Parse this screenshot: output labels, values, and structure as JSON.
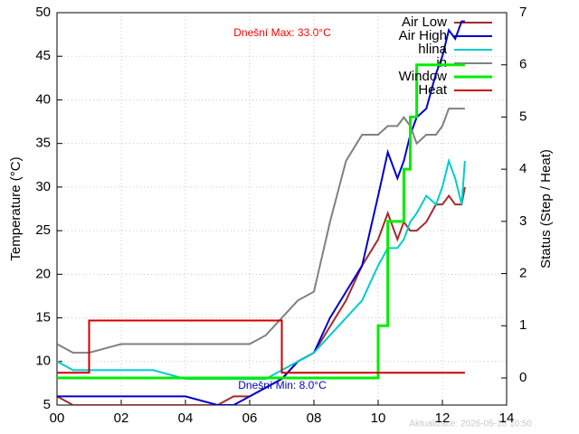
{
  "chart_data": {
    "type": "line",
    "ylabel": "Temperature (°C)",
    "y2label": "Status (Step / Heat)",
    "annotations": [
      {
        "text": "Dnešní Max: 33.0°C",
        "color": "#ff0000"
      },
      {
        "text": "Dnešní Min: 8.0°C",
        "color": "#0000cc"
      }
    ],
    "footer": "Aktualizace: 2026-05-16 10:50",
    "x": [
      0,
      0.5,
      1,
      2,
      3,
      4,
      5,
      5.5,
      6,
      6.5,
      7,
      7.5,
      8,
      8.5,
      9,
      9.5,
      10,
      10.3,
      10.6,
      10.8,
      11,
      11.2,
      11.5,
      11.8,
      12,
      12.2,
      12.4,
      12.6,
      12.7
    ],
    "xlim": [
      0,
      14
    ],
    "xticks": [
      {
        "value": 0,
        "label": "00"
      },
      {
        "value": 2,
        "label": "02"
      },
      {
        "value": 4,
        "label": "04"
      },
      {
        "value": 6,
        "label": "06"
      },
      {
        "value": 8,
        "label": "08"
      },
      {
        "value": 10,
        "label": "10"
      },
      {
        "value": 12,
        "label": "12"
      },
      {
        "value": 14,
        "label": "14"
      }
    ],
    "ylim": [
      5,
      50
    ],
    "yticks": [
      5,
      10,
      15,
      20,
      25,
      30,
      35,
      40,
      45,
      50
    ],
    "y2lim": [
      -0.52,
      7
    ],
    "y2ticks": [
      0,
      1,
      2,
      3,
      4,
      5,
      6,
      7
    ],
    "grid": true,
    "series": [
      {
        "name": "Air Low",
        "color": "#a52a2a",
        "values": [
          6,
          5,
          5,
          5,
          5,
          5,
          5,
          6,
          6,
          7,
          8,
          10,
          11,
          14,
          17,
          21,
          24,
          27,
          24,
          26,
          25,
          25,
          26,
          28,
          28,
          29,
          28,
          28,
          30
        ]
      },
      {
        "name": "Air High",
        "color": "#0000cc",
        "values": [
          6,
          6,
          6,
          6,
          6,
          6,
          5,
          5,
          6,
          7,
          8,
          10,
          11,
          15,
          18,
          21,
          29,
          34,
          31,
          33,
          36,
          38,
          39,
          43,
          45,
          48,
          47,
          49,
          49
        ]
      },
      {
        "name": "hlina",
        "color": "#00cccc",
        "values": [
          10,
          9,
          9,
          9,
          9,
          8,
          8,
          8,
          8,
          8,
          9,
          10,
          11,
          13,
          15,
          17,
          21,
          23,
          23,
          24,
          26,
          27,
          29,
          28,
          30,
          33,
          31,
          28,
          33
        ]
      },
      {
        "name": "in",
        "color": "#808080",
        "values": [
          12,
          11,
          11,
          12,
          12,
          12,
          12,
          12,
          12,
          13,
          15,
          17,
          18,
          26,
          33,
          36,
          36,
          37,
          37,
          38,
          37,
          35,
          36,
          36,
          37,
          39,
          39,
          39,
          39
        ]
      },
      {
        "name": "Window",
        "color": "#00ee00",
        "axis": "y2",
        "step": true,
        "width": 3,
        "values": [
          0,
          0,
          0,
          0,
          0,
          0,
          0,
          0,
          0,
          0,
          0,
          0,
          0,
          0,
          0,
          0,
          1,
          3,
          3,
          4,
          5,
          6,
          6,
          6,
          6,
          6,
          6,
          6,
          6
        ]
      },
      {
        "name": "Heat",
        "color": "#cc0000",
        "axis": "y2",
        "step": true,
        "width": 2,
        "values": [
          0.1,
          0.1,
          1.1,
          1.1,
          1.1,
          1.1,
          1.1,
          1.1,
          1.1,
          1.1,
          0.1,
          0.1,
          0.1,
          0.1,
          0.1,
          0.1,
          0.1,
          0.1,
          0.1,
          0.1,
          0.1,
          0.1,
          0.1,
          0.1,
          0.1,
          0.1,
          0.1,
          0.1,
          0.1
        ]
      }
    ]
  }
}
